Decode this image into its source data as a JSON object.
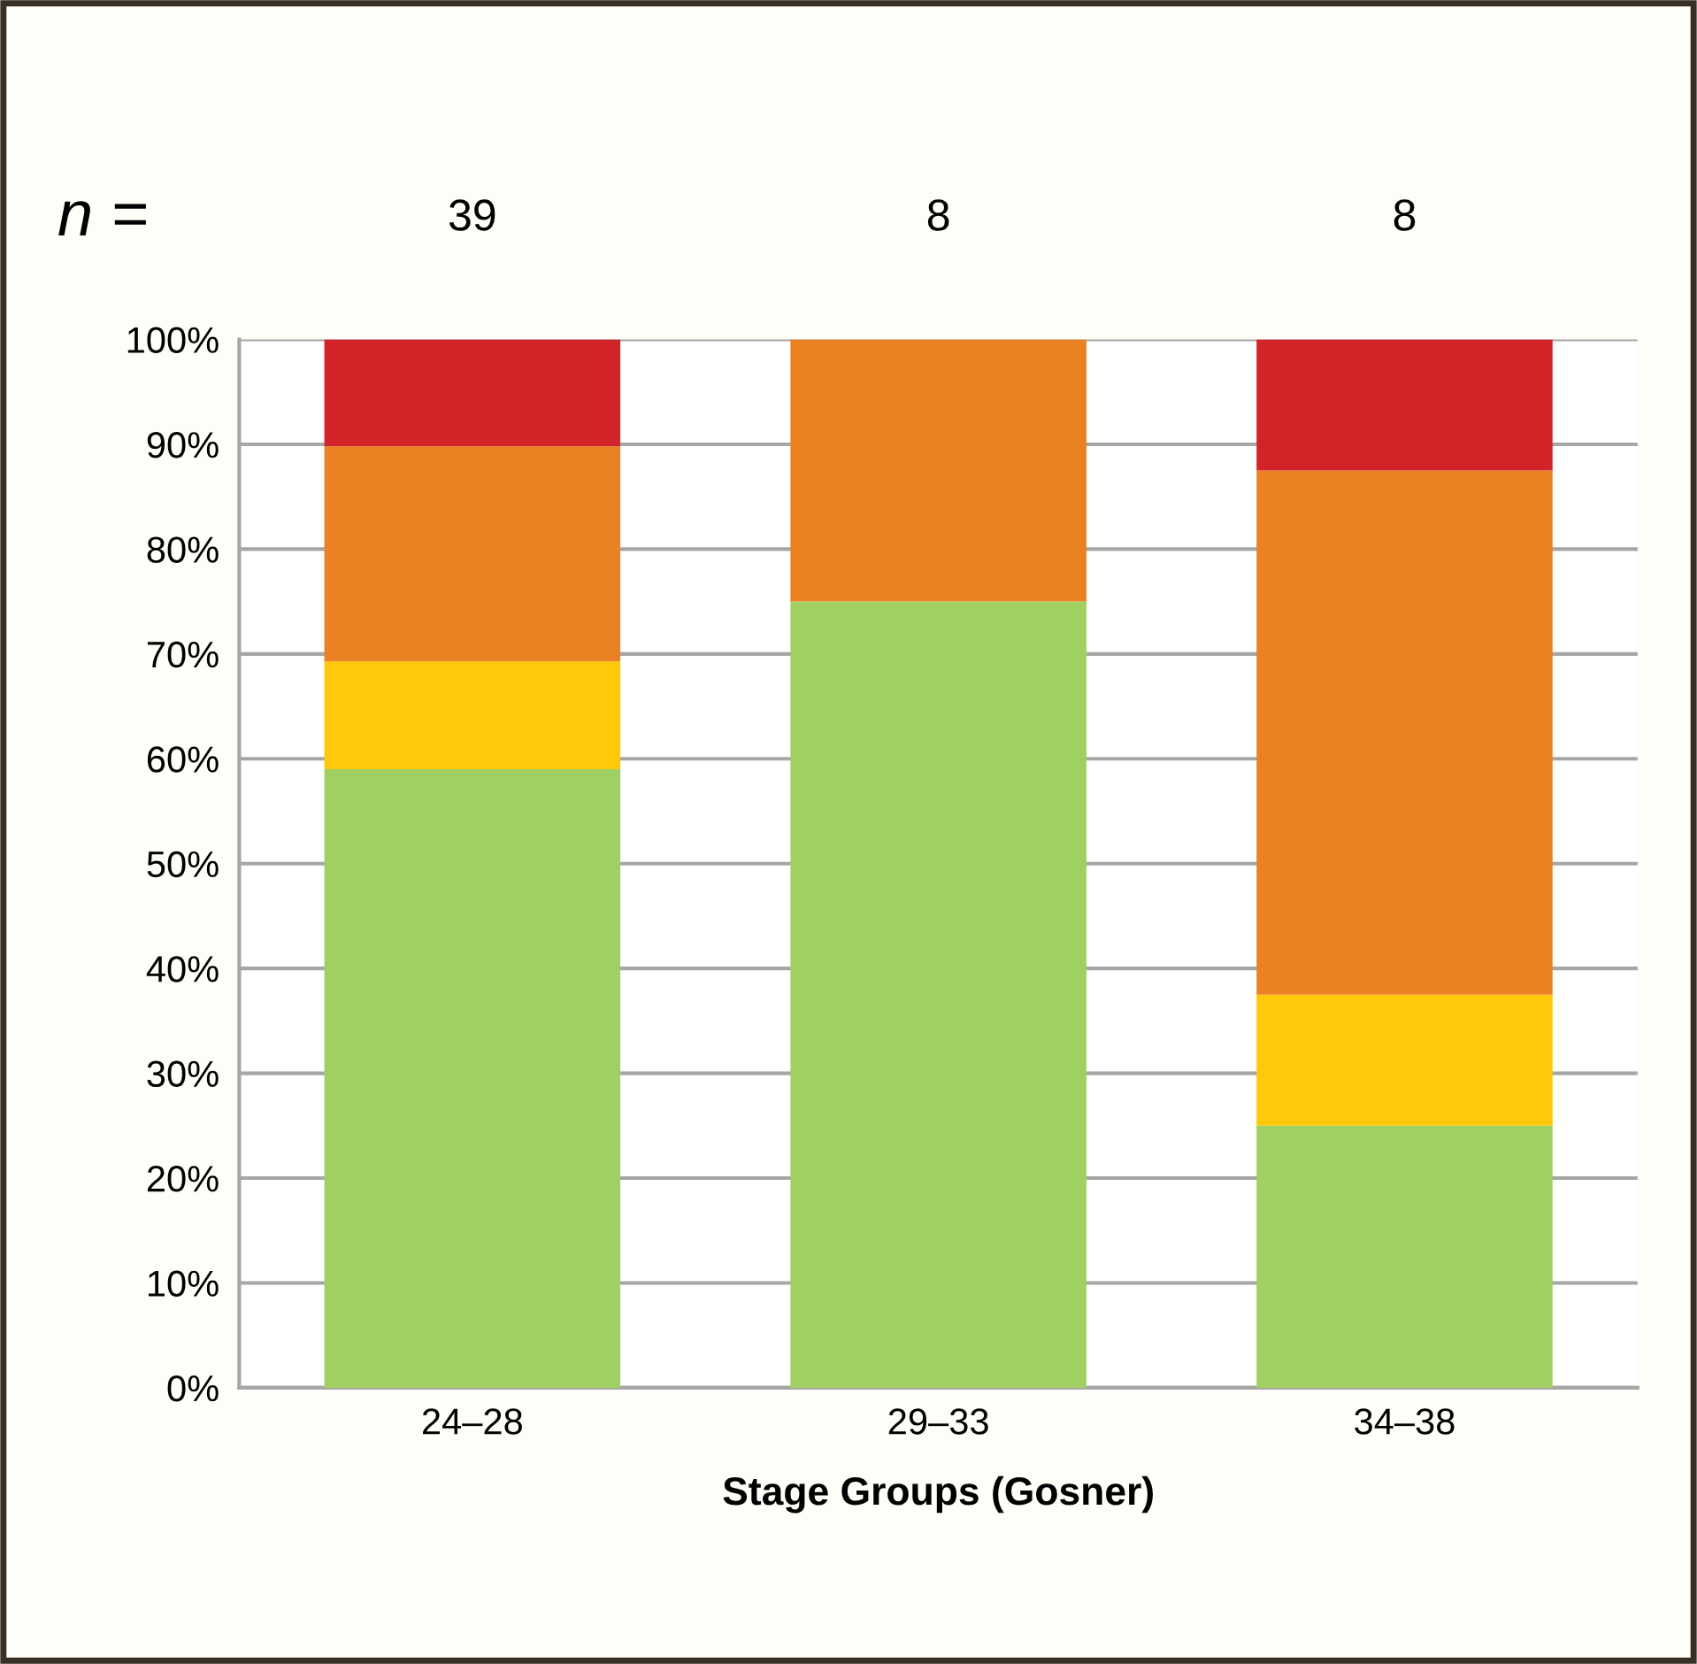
{
  "chart_data": {
    "type": "bar",
    "stacked": true,
    "xlabel": "Stage Groups (Gosner)",
    "categories": [
      "24–28",
      "29–33",
      "34–38"
    ],
    "series": [
      {
        "color": "#a0cf62",
        "values": [
          59.0,
          75,
          25
        ]
      },
      {
        "color": "#ffc90a",
        "values": [
          10.3,
          null,
          12.5
        ]
      },
      {
        "color": "#ea8122",
        "values": [
          20.5,
          25,
          50
        ]
      },
      {
        "color": "#d22328",
        "values": [
          10.2,
          null,
          12.5
        ]
      }
    ],
    "ylim": [
      0,
      100
    ],
    "yticks": [
      {
        "value": 0,
        "label": "0%"
      },
      {
        "value": 10,
        "label": "10%"
      },
      {
        "value": 20,
        "label": "20%"
      },
      {
        "value": 30,
        "label": "30%"
      },
      {
        "value": 40,
        "label": "40%"
      },
      {
        "value": 50,
        "label": "50%"
      },
      {
        "value": 60,
        "label": "60%"
      },
      {
        "value": 70,
        "label": "70%"
      },
      {
        "value": 80,
        "label": "80%"
      },
      {
        "value": 90,
        "label": "90%"
      },
      {
        "value": 100,
        "label": "100%"
      }
    ],
    "grid": "y",
    "annotations": [
      "n =",
      "39",
      "8",
      "8"
    ]
  }
}
